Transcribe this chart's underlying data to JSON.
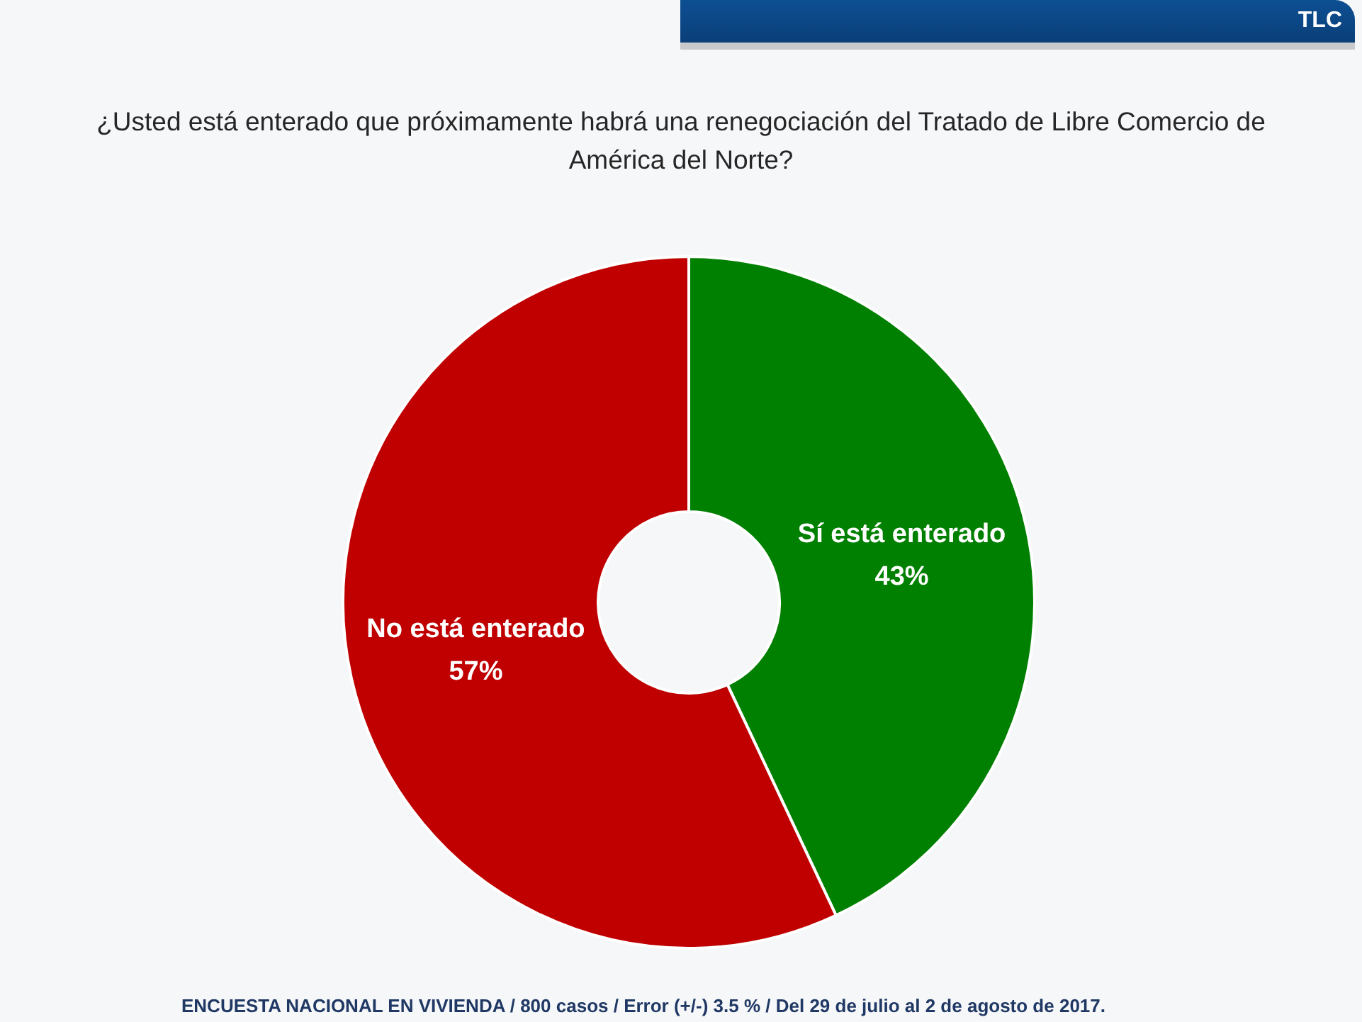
{
  "chart_data": {
    "type": "donut",
    "title": "¿Usted está enterado que próximamente habrá una renegociación del Tratado de Libre Comercio de América del Norte?",
    "categories": [
      "Sí está enterado",
      "No está enterado"
    ],
    "values": [
      43,
      57
    ],
    "colors": [
      "#008000",
      "#c00000"
    ],
    "value_labels": [
      "43%",
      "57%"
    ],
    "annotations": [
      "TLC",
      "ENCUESTA NACIONAL EN VIVIENDA / 800 casos / Error (+/-) 3.5 % / Del 29 de julio al 2 de agosto de 2017."
    ]
  }
}
